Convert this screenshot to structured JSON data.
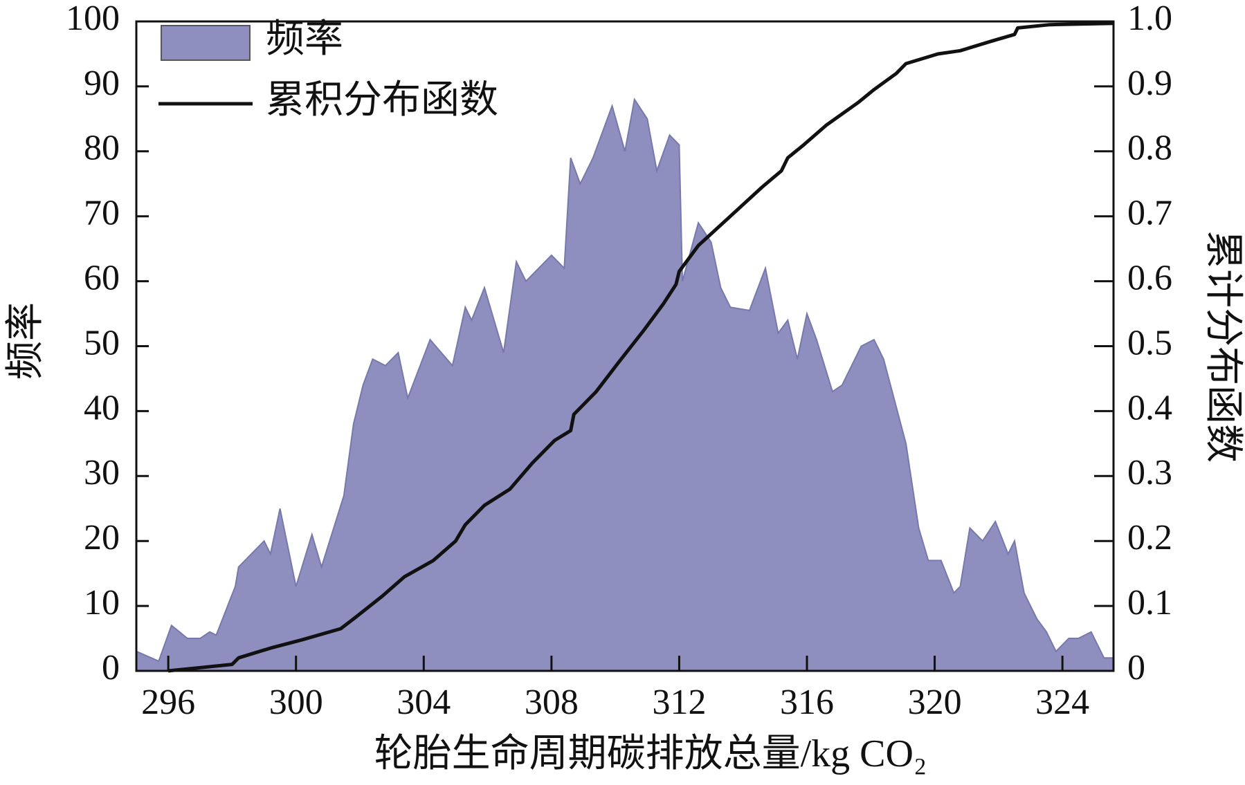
{
  "chart_data": {
    "type": "area",
    "xlabel": "轮胎生命周期碳排放总量/kg CO₂",
    "ylabel": "频率",
    "y2label": "累计分布函数",
    "xlim": [
      295,
      325.6
    ],
    "xticks": [
      296,
      300,
      304,
      308,
      312,
      316,
      320,
      324
    ],
    "ylim": [
      0,
      100
    ],
    "yticks": [
      0,
      10,
      20,
      30,
      40,
      50,
      60,
      70,
      80,
      90,
      100
    ],
    "y2lim": [
      0,
      1
    ],
    "y2ticks": [
      0,
      0.1,
      0.2,
      0.3,
      0.4,
      0.5,
      0.6,
      0.7,
      0.8,
      0.9,
      {
        "value": 1,
        "label": "1.0"
      }
    ],
    "legend": "upper left",
    "series": [
      {
        "name": "频率",
        "type": "area",
        "color": "#8e8fbf",
        "x": [
          295.0,
          295.7,
          296.1,
          296.6,
          297.0,
          297.3,
          297.5,
          298.1,
          298.2,
          299.0,
          299.2,
          299.5,
          300.0,
          300.5,
          300.8,
          301.5,
          301.8,
          302.1,
          302.4,
          302.8,
          303.2,
          303.5,
          304.2,
          304.9,
          305.3,
          305.5,
          305.9,
          306.5,
          306.9,
          307.2,
          308.0,
          308.4,
          308.6,
          308.9,
          309.3,
          309.9,
          310.3,
          310.6,
          311.0,
          311.3,
          311.7,
          312.0,
          312.1,
          312.6,
          313.0,
          313.3,
          313.6,
          314.2,
          314.7,
          315.1,
          315.4,
          315.7,
          316.0,
          316.3,
          316.8,
          317.1,
          317.7,
          318.1,
          318.4,
          319.1,
          319.5,
          319.8,
          320.2,
          320.6,
          320.8,
          321.1,
          321.5,
          321.9,
          322.3,
          322.5,
          322.8,
          323.2,
          323.5,
          323.8,
          324.2,
          324.5,
          324.9,
          325.3,
          325.6
        ],
        "values": [
          3,
          1.5,
          7,
          5,
          5,
          6,
          5.5,
          13,
          16,
          20,
          18,
          25,
          13,
          21,
          16,
          27,
          38,
          44,
          48,
          47,
          49,
          42,
          51,
          47,
          56,
          54,
          59,
          49,
          63,
          60,
          64,
          62,
          79,
          75,
          79,
          87,
          80,
          88,
          85,
          77,
          82.5,
          81,
          60,
          69,
          66,
          59,
          56,
          55.5,
          62,
          52,
          54,
          48,
          55,
          51,
          43,
          44,
          50,
          51,
          48,
          35,
          22,
          17,
          17,
          12,
          13,
          22,
          20,
          23,
          18,
          20,
          12,
          8,
          6,
          3,
          5,
          5,
          6,
          2,
          2
        ]
      },
      {
        "name": "累积分布函数",
        "type": "line",
        "color": "#111111",
        "axis": "y2",
        "x": [
          296.0,
          297.0,
          298.0,
          298.2,
          299.2,
          300.2,
          301.4,
          301.8,
          302.7,
          303.4,
          304.3,
          305.0,
          305.3,
          305.9,
          306.7,
          307.4,
          308.1,
          308.6,
          308.7,
          309.4,
          310.1,
          310.9,
          311.5,
          311.9,
          312.0,
          312.6,
          313.6,
          314.6,
          315.2,
          315.4,
          315.9,
          316.6,
          317.6,
          318.1,
          318.8,
          319.1,
          320.1,
          320.8,
          321.8,
          322.5,
          322.6,
          323.6,
          325.6
        ],
        "values": [
          0,
          0.005,
          0.01,
          0.02,
          0.035,
          0.048,
          0.065,
          0.08,
          0.115,
          0.145,
          0.17,
          0.2,
          0.225,
          0.255,
          0.28,
          0.32,
          0.355,
          0.37,
          0.395,
          0.43,
          0.475,
          0.525,
          0.565,
          0.595,
          0.615,
          0.655,
          0.7,
          0.745,
          0.77,
          0.79,
          0.81,
          0.84,
          0.875,
          0.895,
          0.92,
          0.935,
          0.95,
          0.955,
          0.97,
          0.98,
          0.99,
          0.995,
          0.997
        ]
      }
    ]
  }
}
